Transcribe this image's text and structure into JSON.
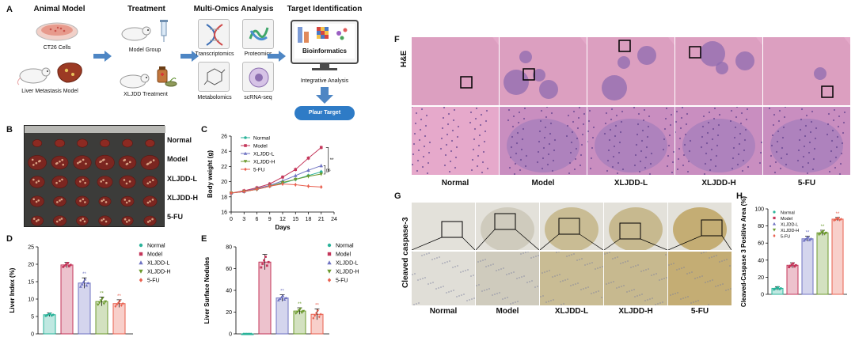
{
  "panel_A": {
    "letter": "A",
    "headers": [
      "Animal Model",
      "Treatment",
      "Multi-Omics Analysis",
      "Target Identification"
    ],
    "ct26": "CT26 Cells",
    "liver_met": "Liver Metastasis Model",
    "model_group": "Model Group",
    "xljdd_treatment": "XLJDD Treatment",
    "omics": [
      "Transcriptomics",
      "Proteomics",
      "Metabolomics",
      "scRNA-seq"
    ],
    "bioinformatics": "Bioinformatics",
    "integrative": "Integrative Analysis",
    "target": "Plaur Target"
  },
  "panel_B": {
    "letter": "B",
    "rows": [
      "Normal",
      "Model",
      "XLJDD-L",
      "XLJDD-H",
      "5-FU"
    ]
  },
  "panel_F": {
    "letter": "F",
    "stain": "H&E",
    "groups": [
      "Normal",
      "Model",
      "XLJDD-L",
      "XLJDD-H",
      "5-FU"
    ]
  },
  "panel_G": {
    "letter": "G",
    "stain": "Cleaved caspase-3",
    "groups": [
      "Normal",
      "Model",
      "XLJDD-L",
      "XLJDD-H",
      "5-FU"
    ]
  },
  "colors": {
    "normal": "#2bb39a",
    "model": "#c4365a",
    "xljdd_l": "#6f73c2",
    "xljdd_h": "#6c9a2e",
    "fu5": "#e9604f"
  },
  "chart_data": [
    {
      "panel": "C",
      "type": "line",
      "xlabel": "Days",
      "ylabel": "Body weight (g)",
      "xticks": [
        0,
        3,
        6,
        9,
        12,
        15,
        18,
        21,
        24
      ],
      "yticks": [
        16,
        18,
        20,
        22,
        24,
        26
      ],
      "xlim": [
        0,
        24
      ],
      "ylim": [
        16,
        26
      ],
      "x": [
        0,
        3,
        6,
        9,
        12,
        15,
        18,
        21
      ],
      "series": [
        {
          "name": "Normal",
          "values": [
            18.5,
            18.7,
            19.0,
            19.4,
            19.8,
            20.3,
            20.8,
            21.3
          ]
        },
        {
          "name": "Model",
          "values": [
            18.5,
            18.8,
            19.2,
            19.7,
            20.6,
            21.6,
            23.1,
            24.5
          ]
        },
        {
          "name": "XLJDD-L",
          "values": [
            18.5,
            18.7,
            19.1,
            19.5,
            20.1,
            20.8,
            21.5,
            22.1
          ]
        },
        {
          "name": "XLJDD-H",
          "values": [
            18.5,
            18.7,
            19.0,
            19.4,
            19.9,
            20.3,
            20.7,
            21.0
          ]
        },
        {
          "name": "5-FU",
          "values": [
            18.5,
            18.7,
            19.0,
            19.4,
            19.7,
            19.6,
            19.4,
            19.3
          ]
        }
      ],
      "annotations": [
        "**",
        "ns"
      ]
    },
    {
      "panel": "D",
      "type": "bar",
      "ylabel": "Liver Index (%)",
      "categories": [
        "Normal",
        "Model",
        "XLJDD-L",
        "XLJDD-H",
        "5-FU"
      ],
      "values": [
        5.5,
        19.8,
        14.6,
        9.3,
        8.7
      ],
      "errors": [
        0.5,
        0.8,
        1.5,
        1.3,
        1.1
      ],
      "yticks": [
        0,
        5,
        10,
        15,
        20,
        25
      ],
      "ylim": [
        0,
        25
      ],
      "sig": [
        "",
        "",
        "**",
        "**",
        "**"
      ]
    },
    {
      "panel": "E",
      "type": "bar",
      "ylabel": "Liver Surface Nodules",
      "categories": [
        "Normal",
        "Model",
        "XLJDD-L",
        "XLJDD-H",
        "5-FU"
      ],
      "values": [
        0,
        66,
        33,
        21,
        18
      ],
      "errors": [
        0,
        7,
        3,
        3,
        5
      ],
      "yticks": [
        0,
        20,
        40,
        60,
        80
      ],
      "ylim": [
        0,
        80
      ],
      "sig": [
        "",
        "",
        "**",
        "**",
        "**"
      ]
    },
    {
      "panel": "H",
      "type": "bar",
      "ylabel": "Cleaved-Caspase 3 Positive Area (%)",
      "categories": [
        "Normal",
        "Model",
        "XLJDD-L",
        "XLJDD-H",
        "5-FU"
      ],
      "values": [
        7,
        34,
        65,
        72,
        88
      ],
      "errors": [
        2,
        3,
        3,
        3,
        2
      ],
      "yticks": [
        0,
        20,
        40,
        60,
        80,
        100
      ],
      "ylim": [
        0,
        100
      ],
      "sig": [
        "",
        "",
        "**",
        "**",
        "**"
      ]
    }
  ]
}
